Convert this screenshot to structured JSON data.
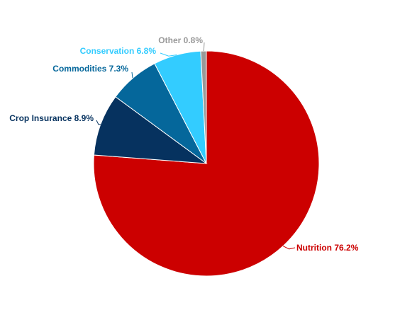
{
  "chart_data": {
    "type": "pie",
    "categories": [
      "Nutrition",
      "Crop Insurance",
      "Commodities",
      "Conservation",
      "Other"
    ],
    "values": [
      76.2,
      8.9,
      7.3,
      6.8,
      0.8
    ],
    "value_labels": [
      "76.2%",
      "8.9%",
      "7.3%",
      "6.8%",
      "0.8%"
    ],
    "colors": [
      "#cc0000",
      "#06325f",
      "#05679b",
      "#33ccff",
      "#999999"
    ]
  }
}
